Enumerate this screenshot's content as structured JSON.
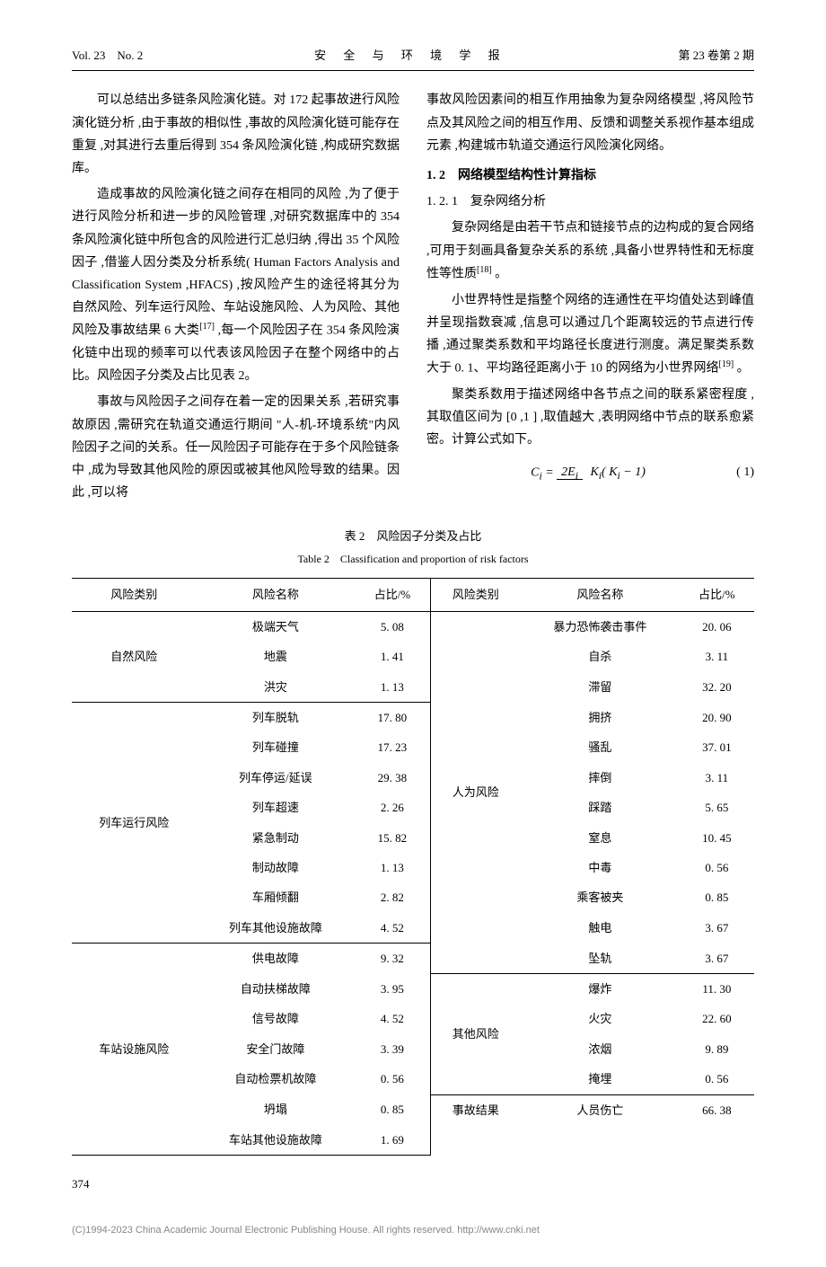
{
  "header": {
    "left": "Vol. 23　No. 2",
    "center": "安 全 与 环 境 学 报",
    "right": "第 23 卷第 2 期"
  },
  "left_column": {
    "p1": "可以总结出多链条风险演化链。对 172 起事故进行风险演化链分析 ,由于事故的相似性 ,事故的风险演化链可能存在重复 ,对其进行去重后得到 354 条风险演化链 ,构成研究数据库。",
    "p2": "造成事故的风险演化链之间存在相同的风险 ,为了便于进行风险分析和进一步的风险管理 ,对研究数据库中的 354 条风险演化链中所包含的风险进行汇总归纳 ,得出 35 个风险因子 ,借鉴人因分类及分析系统( Human Factors Analysis and Classification System ,HFACS) ,按风险产生的途径将其分为自然风险、列车运行风险、车站设施风险、人为风险、其他风险及事故结果 6 大类",
    "p2_ref": "[17]",
    "p2_cont": " ,每一个风险因子在 354 条风险演化链中出现的频率可以代表该风险因子在整个网络中的占比。风险因子分类及占比见表 2。",
    "p3": "事故与风险因子之间存在着一定的因果关系 ,若研究事故原因 ,需研究在轨道交通运行期间 \"人-机-环境系统\"内风险因子之间的关系。任一风险因子可能存在于多个风险链条中 ,成为导致其他风险的原因或被其他风险导致的结果。因此 ,可以将"
  },
  "right_column": {
    "p1": "事故风险因素间的相互作用抽象为复杂网络模型 ,将风险节点及其风险之间的相互作用、反馈和调整关系视作基本组成元素 ,构建城市轨道交通运行风险演化网络。",
    "sec12": "1. 2　网络模型结构性计算指标",
    "sec121": "1. 2. 1　复杂网络分析",
    "p2": "复杂网络是由若干节点和链接节点的边构成的复合网络 ,可用于刻画具备复杂关系的系统 ,具备小世界特性和无标度性等性质",
    "p2_ref": "[18]",
    "p2_end": " 。",
    "p3": "小世界特性是指整个网络的连通性在平均值处达到峰值并呈现指数衰减 ,信息可以通过几个距离较远的节点进行传播 ,通过聚类系数和平均路径长度进行测度。满足聚类系数大于 0. 1、平均路径距离小于 10 的网络为小世界网络",
    "p3_ref": "[19]",
    "p3_end": " 。",
    "p4": "聚类系数用于描述网络中各节点之间的联系紧密程度 ,其取值区间为 [0 ,1 ] ,取值越大 ,表明网络中节点的联系愈紧密。计算公式如下。",
    "formula": {
      "lhs": "C",
      "lhs_sub": "i",
      "eq": " = ",
      "top": "2E",
      "top_sub": "i",
      "bot_k1": "K",
      "bot_sub1": "i",
      "bot_paren": "( K",
      "bot_sub2": "i",
      "bot_end": " − 1)",
      "num": "( 1)"
    }
  },
  "table": {
    "title_cn": "表 2　风险因子分类及占比",
    "title_en": "Table 2　Classification and proportion of risk factors",
    "headers": [
      "风险类别",
      "风险名称",
      "占比/%",
      "风险类别",
      "风险名称",
      "占比/%"
    ],
    "left_groups": [
      {
        "cat": "自然风险",
        "rows": [
          {
            "name": "极端天气",
            "pct": "5. 08"
          },
          {
            "name": "地震",
            "pct": "1. 41"
          },
          {
            "name": "洪灾",
            "pct": "1. 13"
          }
        ]
      },
      {
        "cat": "列车运行风险",
        "rows": [
          {
            "name": "列车脱轨",
            "pct": "17. 80"
          },
          {
            "name": "列车碰撞",
            "pct": "17. 23"
          },
          {
            "name": "列车停运/延误",
            "pct": "29. 38"
          },
          {
            "name": "列车超速",
            "pct": "2. 26"
          },
          {
            "name": "紧急制动",
            "pct": "15. 82"
          },
          {
            "name": "制动故障",
            "pct": "1. 13"
          },
          {
            "name": "车厢倾翻",
            "pct": "2. 82"
          },
          {
            "name": "列车其他设施故障",
            "pct": "4. 52"
          }
        ]
      },
      {
        "cat": "车站设施风险",
        "rows": [
          {
            "name": "供电故障",
            "pct": "9. 32"
          },
          {
            "name": "自动扶梯故障",
            "pct": "3. 95"
          },
          {
            "name": "信号故障",
            "pct": "4. 52"
          },
          {
            "name": "安全门故障",
            "pct": "3. 39"
          },
          {
            "name": "自动检票机故障",
            "pct": "0. 56"
          },
          {
            "name": "坍塌",
            "pct": "0. 85"
          },
          {
            "name": "车站其他设施故障",
            "pct": "1. 69"
          }
        ]
      }
    ],
    "right_groups": [
      {
        "cat": "人为风险",
        "rows": [
          {
            "name": "暴力恐怖袭击事件",
            "pct": "20. 06"
          },
          {
            "name": "自杀",
            "pct": "3. 11"
          },
          {
            "name": "滞留",
            "pct": "32. 20"
          },
          {
            "name": "拥挤",
            "pct": "20. 90"
          },
          {
            "name": "骚乱",
            "pct": "37. 01"
          },
          {
            "name": "摔倒",
            "pct": "3. 11"
          },
          {
            "name": "踩踏",
            "pct": "5. 65"
          },
          {
            "name": "窒息",
            "pct": "10. 45"
          },
          {
            "name": "中毒",
            "pct": "0. 56"
          },
          {
            "name": "乘客被夹",
            "pct": "0. 85"
          },
          {
            "name": "触电",
            "pct": "3. 67"
          },
          {
            "name": "坠轨",
            "pct": "3. 67"
          }
        ]
      },
      {
        "cat": "其他风险",
        "rows": [
          {
            "name": "爆炸",
            "pct": "11. 30"
          },
          {
            "name": "火灾",
            "pct": "22. 60"
          },
          {
            "name": "浓烟",
            "pct": "9. 89"
          },
          {
            "name": "掩埋",
            "pct": "0. 56"
          }
        ]
      },
      {
        "cat": "事故结果",
        "rows": [
          {
            "name": "人员伤亡",
            "pct": "66. 38"
          }
        ]
      }
    ]
  },
  "page_num": "374",
  "footer": "(C)1994-2023 China Academic Journal Electronic Publishing House. All rights reserved.    http://www.cnki.net"
}
